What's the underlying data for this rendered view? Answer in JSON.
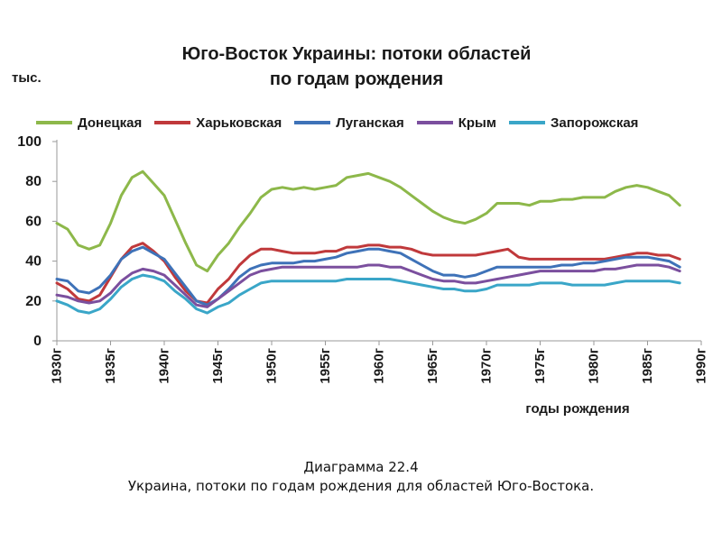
{
  "header": {
    "title_line1": "Юго-Восток Украины:  потоки областей",
    "title_line2": "по годам рождения",
    "y_unit": "тыс."
  },
  "caption": {
    "line1": "Диаграмма 22.4",
    "line2": "Украина, потоки по годам рождения для областей Юго-Востока."
  },
  "chart_data": {
    "type": "line",
    "xlabel": "годы рождения",
    "ylabel": "тыс.",
    "xlim": [
      1930,
      1990
    ],
    "ylim": [
      0,
      100
    ],
    "x_ticks": [
      "1930г",
      "1935г",
      "1940г",
      "1945г",
      "1950г",
      "1955г",
      "1960г",
      "1965г",
      "1970г",
      "1975г",
      "1980г",
      "1985г",
      "1990г"
    ],
    "y_ticks": [
      "0",
      "20",
      "40",
      "60",
      "80",
      "100"
    ],
    "grid": false,
    "legend_position": "top",
    "x": [
      1930,
      1931,
      1932,
      1933,
      1934,
      1935,
      1936,
      1937,
      1938,
      1939,
      1940,
      1941,
      1942,
      1943,
      1944,
      1945,
      1946,
      1947,
      1948,
      1949,
      1950,
      1951,
      1952,
      1953,
      1954,
      1955,
      1956,
      1957,
      1958,
      1959,
      1960,
      1961,
      1962,
      1963,
      1964,
      1965,
      1966,
      1967,
      1968,
      1969,
      1970,
      1971,
      1972,
      1973,
      1974,
      1975,
      1976,
      1977,
      1978,
      1979,
      1980,
      1981,
      1982,
      1983,
      1984,
      1985,
      1986,
      1987,
      1988
    ],
    "series": [
      {
        "name": "Донецкая",
        "color": "#8DB84A",
        "values": [
          59,
          56,
          48,
          46,
          48,
          59,
          73,
          82,
          85,
          79,
          73,
          61,
          49,
          38,
          35,
          43,
          49,
          57,
          64,
          72,
          76,
          77,
          76,
          77,
          76,
          77,
          78,
          82,
          83,
          84,
          82,
          80,
          77,
          73,
          69,
          65,
          62,
          60,
          59,
          61,
          64,
          69,
          69,
          69,
          68,
          70,
          70,
          71,
          71,
          72,
          72,
          72,
          75,
          77,
          78,
          77,
          75,
          73,
          68
        ]
      },
      {
        "name": "Харьковская",
        "color": "#C0393B",
        "values": [
          29,
          26,
          21,
          20,
          23,
          32,
          41,
          47,
          49,
          45,
          40,
          32,
          25,
          20,
          19,
          26,
          31,
          38,
          43,
          46,
          46,
          45,
          44,
          44,
          44,
          45,
          45,
          47,
          47,
          48,
          48,
          47,
          47,
          46,
          44,
          43,
          43,
          43,
          43,
          43,
          44,
          45,
          46,
          42,
          41,
          41,
          41,
          41,
          41,
          41,
          41,
          41,
          42,
          43,
          44,
          44,
          43,
          43,
          41
        ]
      },
      {
        "name": "Луганская",
        "color": "#3E72B8",
        "values": [
          31,
          30,
          25,
          24,
          27,
          33,
          41,
          45,
          47,
          44,
          41,
          34,
          27,
          20,
          18,
          21,
          26,
          32,
          36,
          38,
          39,
          39,
          39,
          40,
          40,
          41,
          42,
          44,
          45,
          46,
          46,
          45,
          44,
          41,
          38,
          35,
          33,
          33,
          32,
          33,
          35,
          37,
          37,
          37,
          37,
          37,
          37,
          38,
          38,
          39,
          39,
          40,
          41,
          42,
          42,
          42,
          41,
          40,
          37
        ]
      },
      {
        "name": "Крым",
        "color": "#7B4F9E",
        "values": [
          23,
          22,
          20,
          19,
          20,
          24,
          30,
          34,
          36,
          35,
          33,
          28,
          23,
          18,
          17,
          21,
          25,
          29,
          33,
          35,
          36,
          37,
          37,
          37,
          37,
          37,
          37,
          37,
          37,
          38,
          38,
          37,
          37,
          35,
          33,
          31,
          30,
          30,
          29,
          29,
          30,
          31,
          32,
          33,
          34,
          35,
          35,
          35,
          35,
          35,
          35,
          36,
          36,
          37,
          38,
          38,
          38,
          37,
          35
        ]
      },
      {
        "name": "Запорожская",
        "color": "#3AA6C8",
        "values": [
          20,
          18,
          15,
          14,
          16,
          21,
          27,
          31,
          33,
          32,
          30,
          25,
          21,
          16,
          14,
          17,
          19,
          23,
          26,
          29,
          30,
          30,
          30,
          30,
          30,
          30,
          30,
          31,
          31,
          31,
          31,
          31,
          30,
          29,
          28,
          27,
          26,
          26,
          25,
          25,
          26,
          28,
          28,
          28,
          28,
          29,
          29,
          29,
          28,
          28,
          28,
          28,
          29,
          30,
          30,
          30,
          30,
          30,
          29
        ]
      }
    ]
  }
}
